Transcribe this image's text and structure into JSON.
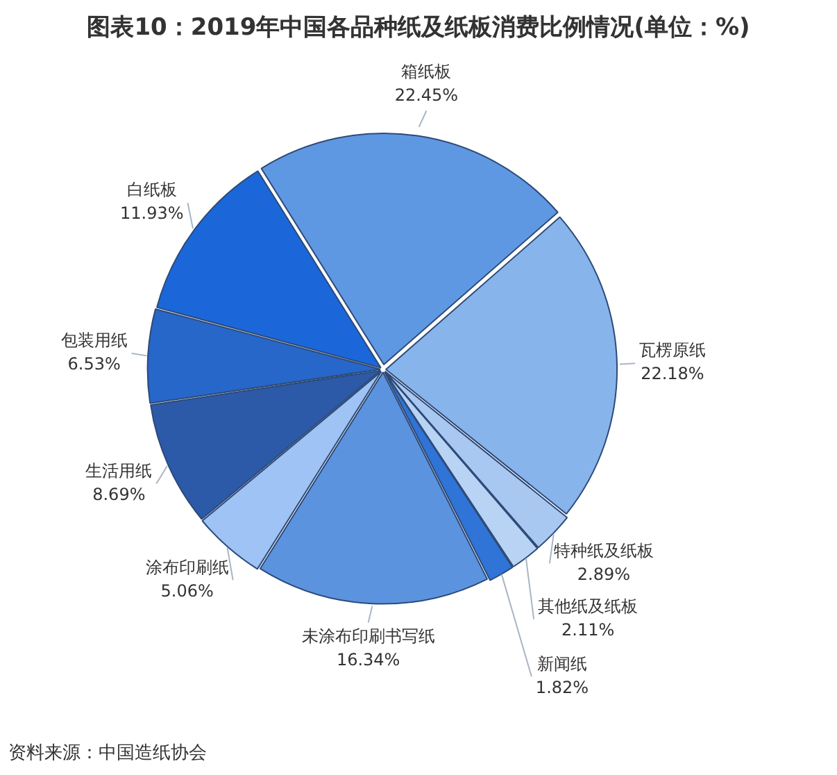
{
  "chart_data": {
    "type": "pie",
    "title": "图表10：2019年中国各品种纸及纸板消费比例情况(单位：%)",
    "categories": [
      "箱纸板",
      "瓦楞原纸",
      "特种纸及纸板",
      "其他纸及纸板",
      "新闻纸",
      "未涂布印刷书写纸",
      "涂布印刷纸",
      "生活用纸",
      "包装用纸",
      "白纸板"
    ],
    "values": [
      22.45,
      22.18,
      2.89,
      2.11,
      1.82,
      16.34,
      5.06,
      8.69,
      6.53,
      11.93
    ],
    "value_labels": [
      "22.45%",
      "22.18%",
      "2.89%",
      "2.11%",
      "1.82%",
      "16.34%",
      "5.06%",
      "8.69%",
      "6.53%",
      "11.93%"
    ],
    "colors": [
      "#5f98e2",
      "#88b4ec",
      "#a8c8f2",
      "#b8d3f4",
      "#2f74d6",
      "#5b93df",
      "#9ec3f4",
      "#2c5aa8",
      "#2767c9",
      "#1b67d9"
    ],
    "annotations": [
      "资料来源：中国造纸协会"
    ]
  }
}
